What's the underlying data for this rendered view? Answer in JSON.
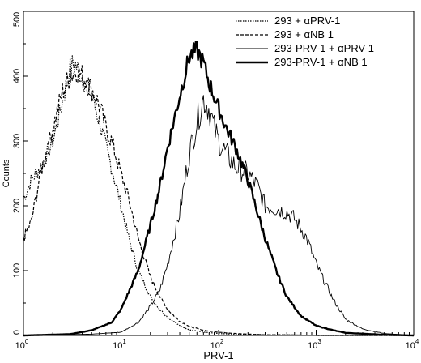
{
  "chart_data": {
    "type": "line",
    "title": "",
    "xlabel": "PRV-1",
    "ylabel": "Counts",
    "xscale": "log",
    "xlim": [
      1,
      10000
    ],
    "ylim": [
      0,
      500
    ],
    "grid": false,
    "legend_position": "top-right",
    "x_ticks": [
      {
        "base": "10",
        "exp": "0"
      },
      {
        "base": "10",
        "exp": "1"
      },
      {
        "base": "10",
        "exp": "2"
      },
      {
        "base": "10",
        "exp": "3"
      },
      {
        "base": "10",
        "exp": "4"
      }
    ],
    "y_ticks": [
      "0",
      "100",
      "200",
      "300",
      "400",
      "500"
    ],
    "series": [
      {
        "name": "293 + αPRV-1",
        "style": "dotted",
        "x": [
          1,
          1.2,
          1.5,
          2,
          2.5,
          3,
          3.3,
          4,
          5,
          6,
          7,
          8,
          10,
          12,
          15,
          20,
          25,
          30,
          40,
          50,
          70,
          100,
          150,
          200,
          300,
          500,
          1000,
          10000
        ],
        "y": [
          210,
          240,
          260,
          300,
          360,
          410,
          420,
          400,
          370,
          330,
          290,
          260,
          200,
          150,
          100,
          60,
          40,
          28,
          15,
          9,
          5,
          3,
          2,
          2,
          1,
          1,
          0,
          0
        ]
      },
      {
        "name": "293 + αNB 1",
        "style": "dashed",
        "x": [
          1,
          1.2,
          1.5,
          2,
          2.5,
          3,
          3.5,
          4,
          5,
          6,
          7,
          8,
          10,
          12,
          15,
          20,
          25,
          30,
          40,
          50,
          70,
          100,
          150,
          200,
          300,
          500,
          1000,
          10000
        ],
        "y": [
          150,
          175,
          250,
          320,
          375,
          400,
          410,
          400,
          380,
          355,
          320,
          300,
          250,
          210,
          150,
          90,
          60,
          40,
          22,
          14,
          8,
          5,
          3,
          2,
          1,
          1,
          0,
          0
        ]
      },
      {
        "name": "293-PRV-1 + αPRV-1",
        "style": "thin",
        "x": [
          1,
          5,
          10,
          15,
          20,
          25,
          30,
          40,
          50,
          60,
          70,
          80,
          90,
          100,
          120,
          150,
          200,
          250,
          300,
          400,
          500,
          600,
          700,
          800,
          1000,
          1500,
          2000,
          3000,
          5000,
          10000
        ],
        "y": [
          0,
          2,
          5,
          20,
          45,
          70,
          110,
          190,
          280,
          330,
          365,
          350,
          320,
          300,
          280,
          260,
          250,
          230,
          200,
          195,
          190,
          180,
          165,
          150,
          110,
          55,
          25,
          10,
          3,
          0
        ]
      },
      {
        "name": "293-PRV-1 + αNB 1",
        "style": "thick",
        "x": [
          1,
          3,
          5,
          8,
          10,
          15,
          20,
          25,
          30,
          40,
          50,
          60,
          70,
          80,
          100,
          120,
          150,
          200,
          250,
          300,
          400,
          500,
          700,
          1000,
          1500,
          2000,
          5000,
          10000
        ],
        "y": [
          0,
          2,
          8,
          20,
          40,
          100,
          170,
          230,
          290,
          370,
          430,
          440,
          420,
          390,
          350,
          320,
          290,
          240,
          190,
          150,
          95,
          60,
          30,
          15,
          8,
          4,
          1,
          0
        ]
      }
    ]
  }
}
